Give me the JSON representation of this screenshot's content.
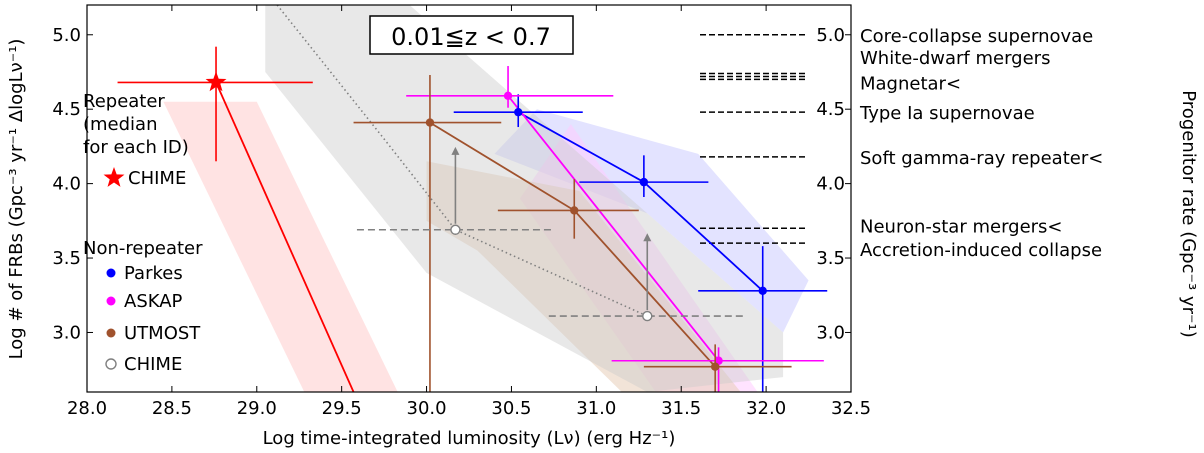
{
  "chart_data": {
    "type": "scatter",
    "title": "0.01≦z < 0.7",
    "xlabel": "Log time-integrated luminosity (L_ν) (erg Hz^-1)",
    "ylabel_left": "Log # of FRBs (Gpc^-3 yr^-1 ΔlogL_ν^-1)",
    "ylabel_right": "Progenitor rate (Gpc^-3 yr^-1)",
    "xlim": [
      28.0,
      32.5
    ],
    "ylim": [
      2.6,
      5.2
    ],
    "x_ticks": [
      "28.0",
      "28.5",
      "29.0",
      "29.5",
      "30.0",
      "30.5",
      "31.0",
      "31.5",
      "32.0",
      "32.5"
    ],
    "y_ticks": [
      "3.0",
      "3.5",
      "4.0",
      "4.5",
      "5.0"
    ],
    "y_ticks_right": [
      "3.0",
      "3.5",
      "4.0",
      "4.5",
      "5.0"
    ],
    "legend": {
      "repeater_header": [
        "Repeater",
        "(median",
        "for each ID)"
      ],
      "non_repeater_header": "Non-repeater",
      "entries": [
        {
          "name": "CHIME",
          "marker": "star",
          "color": "#ff0000",
          "group": "repeater"
        },
        {
          "name": "Parkes",
          "marker": "dot",
          "color": "#0000ff",
          "group": "non-repeater"
        },
        {
          "name": "ASKAP",
          "marker": "dot",
          "color": "#ff00ff",
          "group": "non-repeater"
        },
        {
          "name": "UTMOST",
          "marker": "dot",
          "color": "#a0522d",
          "group": "non-repeater"
        },
        {
          "name": "CHIME",
          "marker": "open-circle",
          "color": "#808080",
          "group": "non-repeater"
        }
      ]
    },
    "series": [
      {
        "name": "CHIME",
        "group": "repeater",
        "color": "#ff0000",
        "marker": "star",
        "points": [
          {
            "x": 28.76,
            "y": 4.68,
            "xerr": [
              0.58,
              0.57
            ],
            "yerr": [
              0.53,
              0.24
            ]
          }
        ],
        "fit_line": [
          [
            28.76,
            4.68
          ],
          [
            29.57,
            2.6
          ]
        ],
        "band": [
          [
            28.45,
            4.55
          ],
          [
            29.0,
            4.55
          ],
          [
            29.83,
            2.6
          ],
          [
            29.28,
            2.6
          ]
        ]
      },
      {
        "name": "Parkes",
        "color": "#0000ff",
        "marker": "dot",
        "points": [
          {
            "x": 30.54,
            "y": 4.48,
            "xerr": [
              0.38,
              0.38
            ],
            "yerr": [
              0.1,
              0.12
            ]
          },
          {
            "x": 31.28,
            "y": 4.01,
            "xerr": [
              0.38,
              0.38
            ],
            "yerr": [
              0.1,
              0.18
            ]
          },
          {
            "x": 31.98,
            "y": 3.28,
            "xerr": [
              0.38,
              0.38
            ],
            "yerr": [
              0.68,
              0.3
            ]
          }
        ],
        "band": [
          [
            30.65,
            4.5
          ],
          [
            31.6,
            4.2
          ],
          [
            32.25,
            3.35
          ],
          [
            32.1,
            3.0
          ],
          [
            31.3,
            3.8
          ],
          [
            30.4,
            4.2
          ]
        ]
      },
      {
        "name": "ASKAP",
        "color": "#ff00ff",
        "marker": "dot",
        "points": [
          {
            "x": 30.48,
            "y": 4.59,
            "xerr": [
              0.6,
              0.62
            ],
            "yerr": [
              0.08,
              0.2
            ]
          },
          {
            "x": 31.72,
            "y": 2.81,
            "xerr": [
              0.63,
              0.62
            ],
            "yerr": [
              0.21,
              0.09
            ]
          }
        ],
        "band": [
          [
            30.85,
            4.4
          ],
          [
            31.95,
            2.6
          ],
          [
            31.35,
            2.6
          ],
          [
            30.55,
            3.9
          ]
        ]
      },
      {
        "name": "UTMOST",
        "color": "#a0522d",
        "marker": "dot",
        "points": [
          {
            "x": 30.02,
            "y": 4.41,
            "xerr": [
              0.45,
              0.42
            ],
            "yerr": [
              1.81,
              0.32
            ]
          },
          {
            "x": 30.87,
            "y": 3.82,
            "xerr": [
              0.45,
              0.38
            ],
            "yerr": [
              0.19,
              0.21
            ]
          },
          {
            "x": 31.7,
            "y": 2.77,
            "xerr": [
              0.42,
              0.45
            ],
            "yerr": [
              0.17,
              0.15
            ]
          }
        ],
        "band": [
          [
            30.0,
            4.15
          ],
          [
            30.9,
            3.95
          ],
          [
            31.85,
            2.6
          ],
          [
            31.15,
            2.6
          ],
          [
            30.3,
            3.55
          ],
          [
            30.0,
            3.75
          ]
        ]
      },
      {
        "name": "CHIME",
        "color": "#808080",
        "marker": "open-circle",
        "points": [
          {
            "x": 30.17,
            "y": 3.69,
            "xerr": [
              0.58,
              0.58
            ],
            "yerr_lowerlimit_arrow": 0.55
          },
          {
            "x": 31.3,
            "y": 3.11,
            "xerr": [
              0.58,
              0.58
            ],
            "yerr_lowerlimit_arrow": 0.55
          }
        ],
        "dotted_line": [
          [
            29.12,
            5.2
          ],
          [
            29.75,
            4.3
          ],
          [
            30.17,
            3.69
          ],
          [
            31.3,
            3.11
          ]
        ],
        "band": [
          [
            29.05,
            5.2
          ],
          [
            29.9,
            5.2
          ],
          [
            32.1,
            3.0
          ],
          [
            32.1,
            2.7
          ],
          [
            31.3,
            2.6
          ],
          [
            30.0,
            3.4
          ],
          [
            29.05,
            4.75
          ]
        ]
      }
    ],
    "progenitors": [
      {
        "label": "Core-collapse supernovae",
        "y": 5.0
      },
      {
        "label": "White-dwarf mergers",
        "y": 4.74
      },
      {
        "label": "",
        "y": 4.72
      },
      {
        "label": "Magnetar<",
        "y": 4.7
      },
      {
        "label": "Type Ia supernovae",
        "y": 4.48
      },
      {
        "label": "Soft gamma-ray repeater<",
        "y": 4.18
      },
      {
        "label": "Neuron-star mergers<",
        "y": 3.7
      },
      {
        "label": "Accretion-induced collapse",
        "y": 3.6
      }
    ]
  }
}
